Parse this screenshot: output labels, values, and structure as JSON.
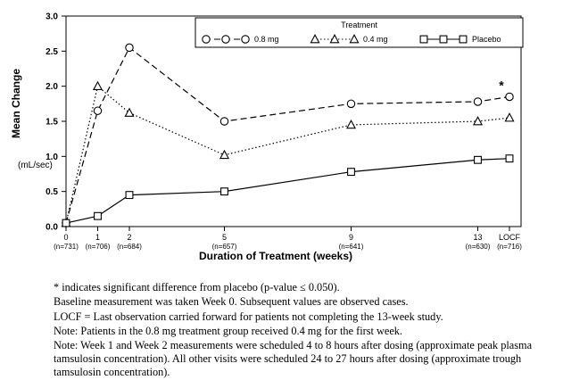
{
  "chart_data": {
    "type": "line",
    "title": "",
    "xlabel": "Duration of Treatment (weeks)",
    "ylabel": "Mean Change",
    "ylabel_units": "(mL/sec)",
    "ylim": [
      0.0,
      3.0
    ],
    "yticks": [
      0.0,
      0.5,
      1.0,
      1.5,
      2.0,
      2.5,
      3.0
    ],
    "x_weeks": [
      0,
      1,
      2,
      5,
      9,
      13,
      14
    ],
    "x_tick_labels": [
      "0",
      "1",
      "2",
      "5",
      "9",
      "13",
      "LOCF"
    ],
    "x_tick_sublabels": [
      "(n=731)",
      "(n=706)",
      "(n=684)",
      "(n=657)",
      "(n=641)",
      "(n=630)",
      "(n=716)"
    ],
    "legend_title": "Treatment",
    "legend_position": "top-center-inside",
    "grid": false,
    "line_color": "#000000",
    "series": [
      {
        "name": "0.8 mg",
        "marker": "circle",
        "line": "dash",
        "values": [
          0.05,
          1.65,
          2.55,
          1.5,
          1.75,
          1.78,
          1.85
        ]
      },
      {
        "name": "0.4 mg",
        "marker": "triangle",
        "line": "dot",
        "values": [
          0.05,
          2.0,
          1.62,
          1.02,
          1.45,
          1.5,
          1.55
        ]
      },
      {
        "name": "Placebo",
        "marker": "square",
        "line": "solid",
        "values": [
          0.05,
          0.15,
          0.45,
          0.5,
          0.78,
          0.95,
          0.97
        ]
      }
    ],
    "annotations": [
      {
        "text": "*",
        "week": 14,
        "value": 2.0
      }
    ]
  },
  "footnotes": [
    "* indicates significant difference from placebo (p-value ≤ 0.050).",
    "Baseline measurement was taken Week 0. Subsequent values are observed cases.",
    "LOCF = Last observation carried forward for patients not completing the 13-week study.",
    "Note: Patients in the 0.8 mg treatment group received 0.4 mg for the first week.",
    "Note: Week 1 and Week 2 measurements were scheduled 4 to 8 hours after dosing (approximate peak plasma tamsulosin concentration). All other visits were scheduled 24 to 27 hours after dosing (approximate trough tamsulosin concentration)."
  ]
}
